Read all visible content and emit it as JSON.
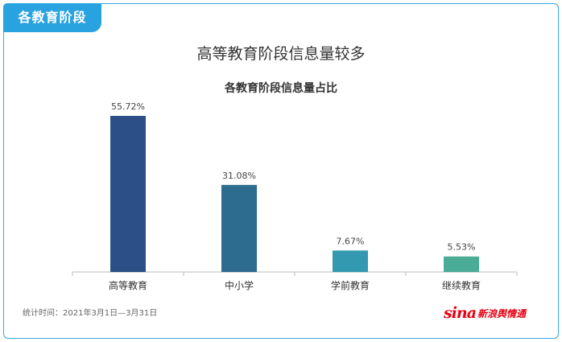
{
  "header": {
    "tag_label": "各教育阶段"
  },
  "chart_data": {
    "type": "bar",
    "title": "高等教育阶段信息量较多",
    "subtitle": "各教育阶段信息量占比",
    "categories": [
      "高等教育",
      "中小学",
      "学前教育",
      "继续教育"
    ],
    "values": [
      55.72,
      31.08,
      7.67,
      5.53
    ],
    "value_labels": [
      "55.72%",
      "31.08%",
      "7.67%",
      "5.53%"
    ],
    "colors": [
      "#2b4f86",
      "#2d6b8f",
      "#3399b0",
      "#4aab96"
    ],
    "ylim": [
      0,
      55.72
    ],
    "grid": false,
    "legend": "none"
  },
  "footer": {
    "note": "统计时间：2021年3月1日—3月31日",
    "logo_mark": "sina",
    "logo_text": "新浪舆情通"
  }
}
